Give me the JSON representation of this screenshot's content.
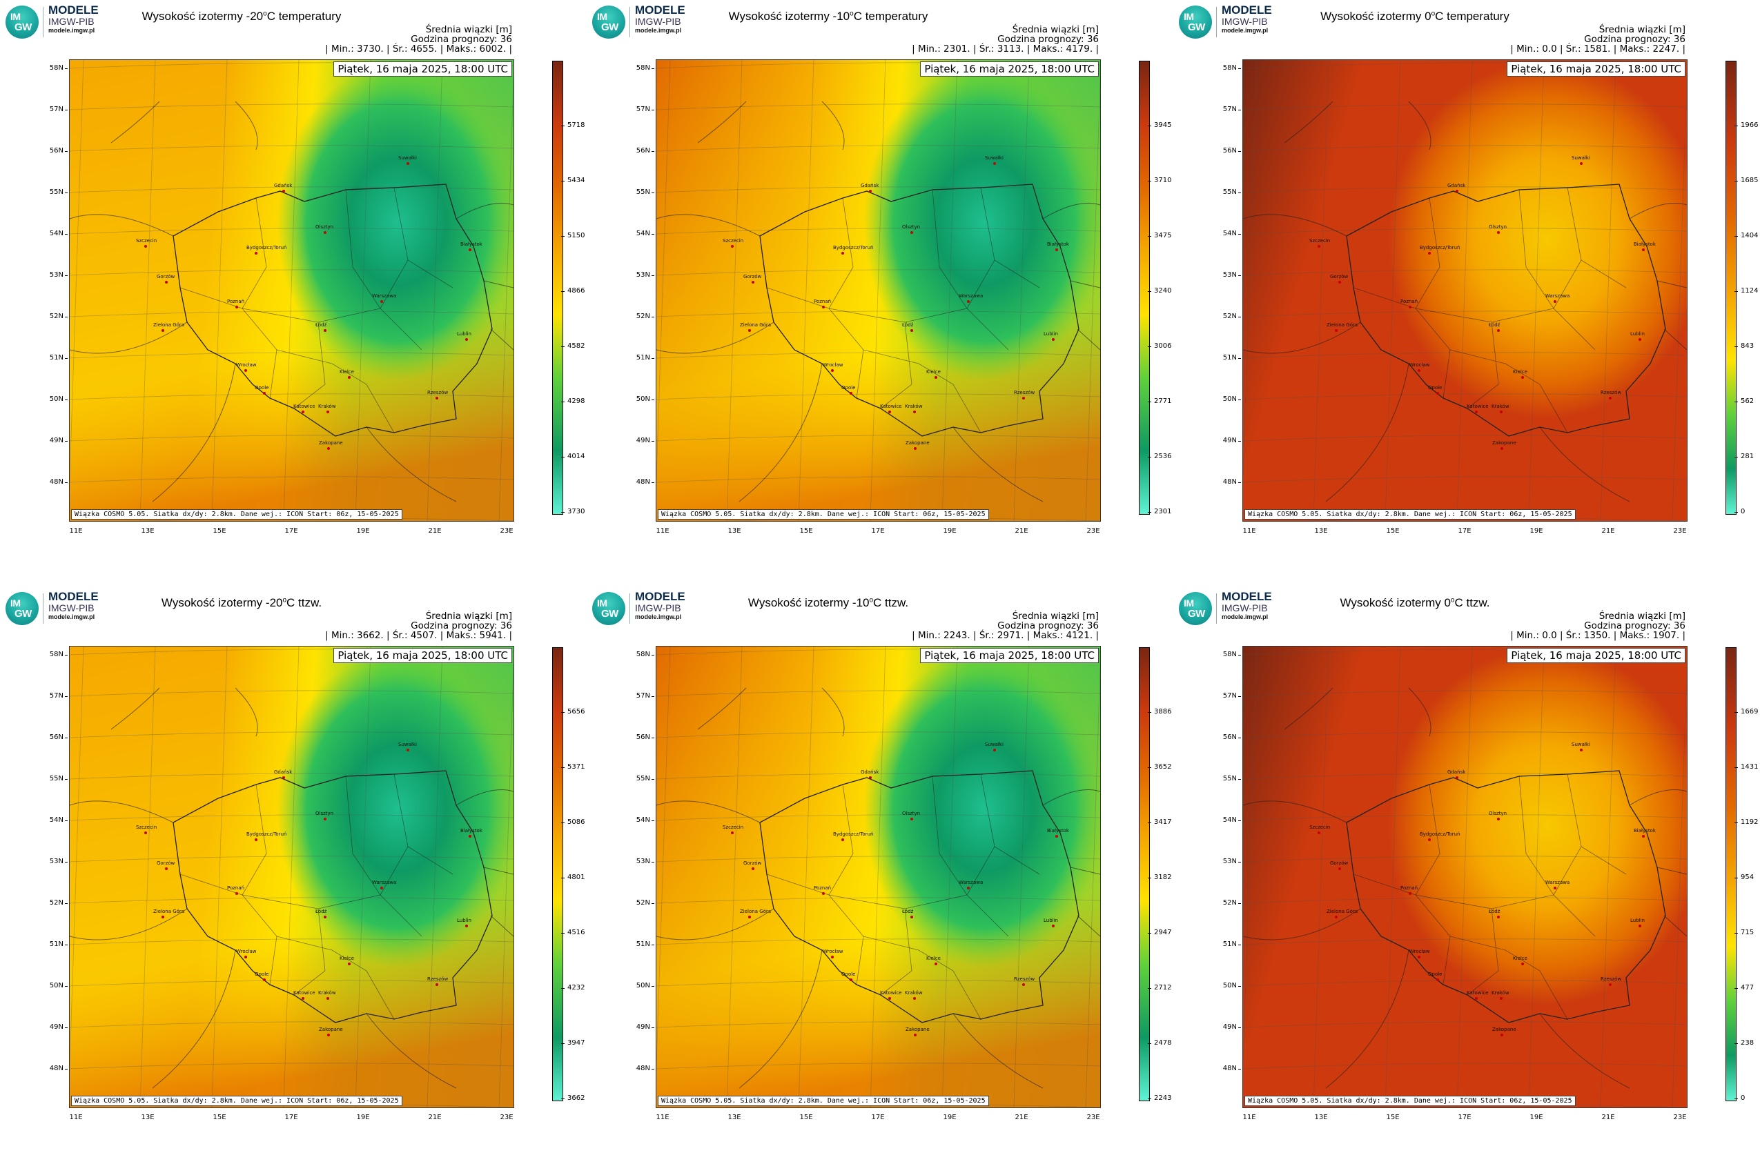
{
  "logo": {
    "badge_top": "IM",
    "badge_bottom": "GW",
    "line1": "MODELE",
    "line2": "IMGW-PIB",
    "line3": "modele.imgw.pl"
  },
  "common": {
    "mean_label": "Średnia wiązki [m]",
    "forecast_hour": "Godzina prognozy: 36",
    "date": "Piątek, 16 maja 2025, 18:00 UTC",
    "source": "Wiązka COSMO 5.05. Siatka dx/dy: 2.8km. Dane wej.: ICON Start: 06z, 15-05-2025"
  },
  "lat_labels": [
    "58N",
    "57N",
    "56N",
    "55N",
    "54N",
    "53N",
    "52N",
    "51N",
    "50N",
    "49N",
    "48N"
  ],
  "lon_labels": [
    "11E",
    "13E",
    "15E",
    "17E",
    "19E",
    "21E",
    "23E"
  ],
  "cities": [
    "Gdańsk",
    "Olsztyn",
    "Szczecin",
    "Bydgoszcz/Toruń",
    "Gorzów",
    "Poznań",
    "Białystok",
    "Warszawa",
    "Łódź",
    "Zielona Góra",
    "Lublin",
    "Wrocław",
    "Kielce",
    "Opole",
    "Rzeszów",
    "Katowice",
    "Kraków",
    "Zakopane",
    "Suwałki"
  ],
  "colors": {
    "green_dark": "#0e9a63",
    "green_mid": "#2fbf5a",
    "green_light": "#5fd13a",
    "yellow": "#ffe300",
    "orange": "#f5a800",
    "dark_orange": "#e26a00",
    "red": "#cc3a0e",
    "brown": "#7a2612"
  },
  "panels": [
    {
      "title": "Wysokość izotermy -20",
      "title_sup": "o",
      "title_tail": "C temperatury",
      "stats": "| Min.: 3730. | Śr.: 4655. | Maks.: 6002. |",
      "min": 3730,
      "mean": 4655,
      "max": 6002,
      "colorbar_ticks": [
        "5718",
        "5434",
        "5150",
        "4866",
        "4582",
        "4298",
        "4014",
        "3730"
      ],
      "field": "green-east"
    },
    {
      "title": "Wysokość izotermy -10",
      "title_sup": "o",
      "title_tail": "C temperatury",
      "stats": "| Min.: 2301. | Śr.: 3113. | Maks.: 4179. |",
      "min": 2301,
      "mean": 3113,
      "max": 4179,
      "colorbar_ticks": [
        "3945",
        "3710",
        "3475",
        "3240",
        "3006",
        "2771",
        "2536",
        "2301"
      ],
      "field": "green-east-orange"
    },
    {
      "title": "Wysokość izotermy 0",
      "title_sup": "o",
      "title_tail": "C temperatury",
      "stats": "| Min.: 0.0 | Śr.: 1581. | Maks.: 2247. |",
      "min": 0.0,
      "mean": 1581,
      "max": 2247,
      "colorbar_ticks": [
        "1966",
        "1685",
        "1404",
        "1124",
        "843",
        "562",
        "281",
        "0"
      ],
      "field": "red"
    },
    {
      "title": "Wysokość izotermy -20",
      "title_sup": "o",
      "title_tail": "C ttzw.",
      "stats": "| Min.: 3662. | Śr.: 4507. | Maks.: 5941. |",
      "min": 3662,
      "mean": 4507,
      "max": 5941,
      "colorbar_ticks": [
        "5656",
        "5371",
        "5086",
        "4801",
        "4516",
        "4232",
        "3947",
        "3662"
      ],
      "field": "green-east"
    },
    {
      "title": "Wysokość izotermy -10",
      "title_sup": "o",
      "title_tail": "C ttzw.",
      "stats": "| Min.: 2243. | Śr.: 2971. | Maks.: 4121. |",
      "min": 2243,
      "mean": 2971,
      "max": 4121,
      "colorbar_ticks": [
        "3886",
        "3652",
        "3417",
        "3182",
        "2947",
        "2712",
        "2478",
        "2243"
      ],
      "field": "green-east-orange"
    },
    {
      "title": "Wysokość izotermy 0",
      "title_sup": "o",
      "title_tail": "C ttzw.",
      "stats": "| Min.: 0.0 | Śr.: 1350. | Maks.: 1907. |",
      "min": 0.0,
      "mean": 1350,
      "max": 1907,
      "colorbar_ticks": [
        "1669",
        "1431",
        "1192",
        "954",
        "715",
        "477",
        "238",
        "0"
      ],
      "field": "red"
    }
  ]
}
